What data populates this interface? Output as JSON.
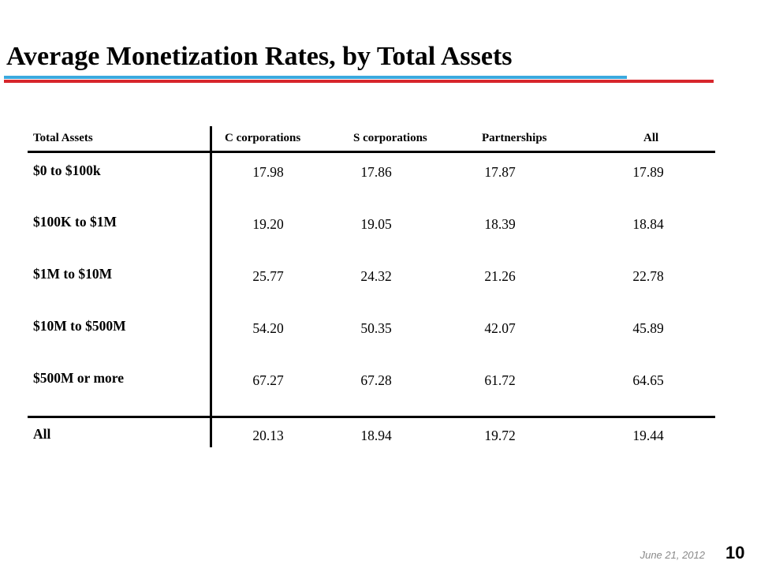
{
  "slide": {
    "title": "Average Monetization Rates, by Total Assets",
    "rule_color_blue": "#3ba9de",
    "rule_color_red": "#d7262c"
  },
  "table": {
    "headers": [
      "Total Assets",
      "C corporations",
      "S corporations",
      "Partnerships",
      "All"
    ],
    "rows": [
      {
        "label": "$0 to $100k",
        "values": [
          "17.98",
          "17.86",
          "17.87",
          "17.89"
        ]
      },
      {
        "label": "$100K to $1M",
        "values": [
          "19.20",
          "19.05",
          "18.39",
          "18.84"
        ]
      },
      {
        "label": "$1M to $10M",
        "values": [
          "25.77",
          "24.32",
          "21.26",
          "22.78"
        ]
      },
      {
        "label": "$10M to $500M",
        "values": [
          "54.20",
          "50.35",
          "42.07",
          "45.89"
        ]
      },
      {
        "label": "$500M or more",
        "values": [
          "67.27",
          "67.28",
          "61.72",
          "64.65"
        ]
      },
      {
        "label": "All",
        "values": [
          "20.13",
          "18.94",
          "19.72",
          "19.44"
        ]
      }
    ]
  },
  "footer": {
    "date": "June 21, 2012",
    "page_number": "10"
  }
}
